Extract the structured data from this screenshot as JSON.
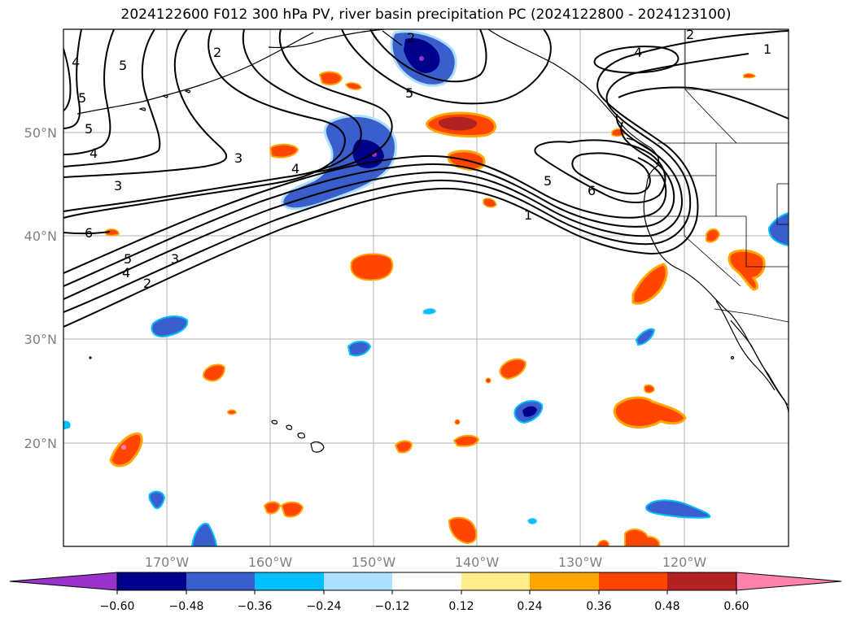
{
  "title": "2024122600 F012 300 hPa PV, river basin precipitation PC (2024122800 - 2024123100)",
  "map": {
    "lon_ticks": [
      "170°W",
      "160°W",
      "150°W",
      "140°W",
      "130°W",
      "120°W"
    ],
    "lat_ticks": [
      "50°N",
      "40°N",
      "30°N",
      "20°N"
    ],
    "grid": true
  },
  "colorbar": {
    "levels": [
      "−0.60",
      "−0.48",
      "−0.36",
      "−0.24",
      "−0.12",
      "0.12",
      "0.24",
      "0.36",
      "0.48",
      "0.60"
    ],
    "colors": [
      "#9932CC",
      "#00008B",
      "#3A5FCD",
      "#00BFFF",
      "#ADDFFF",
      "#FFFFFF",
      "#FFEC8B",
      "#FFA500",
      "#FF4500",
      "#B22222",
      "#FF82AB"
    ],
    "extend": "both"
  },
  "contour_labels": [
    {
      "id": "c1",
      "text": "2"
    },
    {
      "id": "c2",
      "text": "4"
    },
    {
      "id": "c3",
      "text": "5"
    },
    {
      "id": "c4",
      "text": "2"
    },
    {
      "id": "c5",
      "text": "5"
    },
    {
      "id": "c6",
      "text": "5"
    },
    {
      "id": "c7",
      "text": "4"
    },
    {
      "id": "c8",
      "text": "3"
    },
    {
      "id": "c9",
      "text": "4"
    },
    {
      "id": "c10",
      "text": "3"
    },
    {
      "id": "c11",
      "text": "6"
    },
    {
      "id": "c12",
      "text": "5"
    },
    {
      "id": "c13",
      "text": "4"
    },
    {
      "id": "c14",
      "text": "3"
    },
    {
      "id": "c15",
      "text": "2"
    },
    {
      "id": "c16",
      "text": "5"
    },
    {
      "id": "c17",
      "text": "6"
    },
    {
      "id": "c18",
      "text": "1"
    },
    {
      "id": "c19",
      "text": "4"
    },
    {
      "id": "c20",
      "text": "2"
    },
    {
      "id": "c21",
      "text": "1"
    },
    {
      "id": "c22",
      "text": "5"
    }
  ]
}
